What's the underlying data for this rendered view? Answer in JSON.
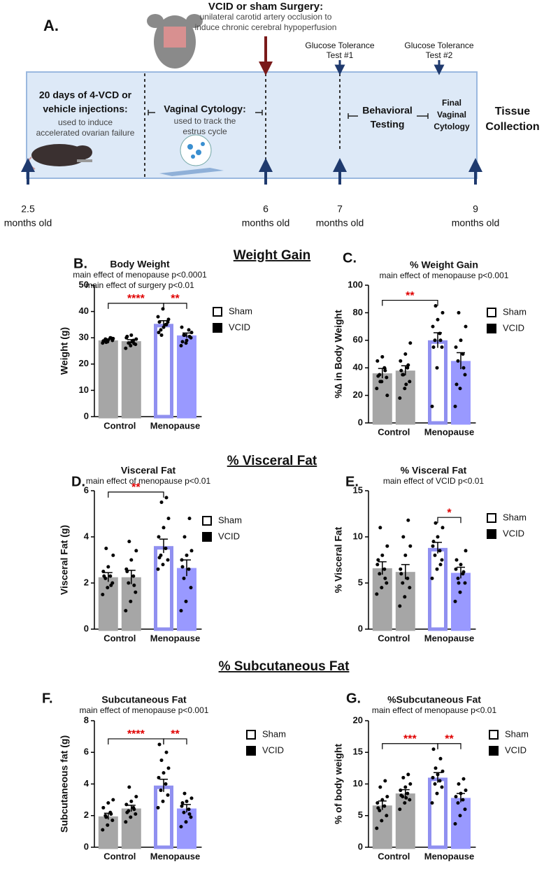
{
  "timeline": {
    "panel": "A.",
    "surgery": {
      "title": "VCID or sham Surgery:",
      "lines": [
        "unilateral carotid artery occlusion to",
        "induce chronic cerebral hypoperfusion"
      ]
    },
    "gtt1": [
      "Glucose Tolerance",
      "Test #1"
    ],
    "gtt2": [
      "Glucose Tolerance",
      "Test #2"
    ],
    "injections": {
      "title": [
        "20 days of 4-VCD or",
        "vehicle injections:"
      ],
      "lines": [
        "used to induce",
        "accelerated ovarian failure"
      ]
    },
    "cytology": {
      "title": "Vaginal Cytology:",
      "lines": [
        "used to track the",
        "estrus cycle"
      ]
    },
    "behavior": [
      "Behavioral",
      "Testing"
    ],
    "final": [
      "Final",
      "Vaginal",
      "Cytology"
    ],
    "tissue": [
      "Tissue",
      "Collection"
    ],
    "ages": [
      {
        "age": "2.5",
        "unit": "months old"
      },
      {
        "age": "6",
        "unit": "months old"
      },
      {
        "age": "7",
        "unit": "months old"
      },
      {
        "age": "9",
        "unit": "months old"
      }
    ]
  },
  "sections": [
    "Weight Gain",
    "% Visceral Fat",
    "% Subcutaneous Fat"
  ],
  "chart_data": [
    {
      "type": "bar",
      "panel": "B.",
      "title": "Body Weight",
      "subtitle": [
        "main effect of menopause p<0.0001",
        "main effect of surgery p<0.01"
      ],
      "ylabel": "Weight (g)",
      "categories": [
        "Control",
        "Menopause"
      ],
      "ylim": [
        0,
        50
      ],
      "yticks": [
        0,
        10,
        20,
        30,
        40,
        50
      ],
      "series": [
        {
          "name": "Sham",
          "colors": [
            "#a6a6a6",
            "#9090f0"
          ],
          "fills": [
            "#a6a6a6",
            "#ffffff"
          ],
          "legend_fill": "#ffffff",
          "values": [
            29,
            35.3
          ],
          "errors": [
            0.4,
            1.2
          ],
          "points": [
            [
              28,
              28.5,
              29,
              29.5,
              30,
              28.8,
              29.2,
              29.7,
              28.3,
              29.9
            ],
            [
              38,
              41,
              36,
              33,
              35,
              32,
              34,
              37,
              31,
              35,
              36
            ]
          ]
        },
        {
          "name": "VCID",
          "colors": [
            "#a6a6a6",
            "#9999ff"
          ],
          "fills": [
            "#a6a6a6",
            "#9999ff"
          ],
          "legend_fill": "#000000",
          "values": [
            28.7,
            30.9
          ],
          "errors": [
            0.6,
            0.9
          ],
          "points": [
            [
              26,
              27,
              27.5,
              28,
              29,
              30,
              31,
              29.5,
              28,
              27.8,
              30.5,
              28.5
            ],
            [
              27,
              28,
              30,
              31,
              33,
              34,
              29,
              32,
              31,
              30.5,
              28.5
            ]
          ]
        }
      ],
      "significance": [
        {
          "label": "****",
          "between": [
            [
              0,
              0
            ],
            [
              1,
              0
            ]
          ]
        },
        {
          "label": "**",
          "between": [
            [
              1,
              0
            ],
            [
              1,
              1
            ]
          ]
        }
      ]
    },
    {
      "type": "bar",
      "panel": "C.",
      "title": "% Weight Gain",
      "subtitle": [
        "main effect of menopause p<0.001"
      ],
      "ylabel": "%∆ in Body Weight",
      "categories": [
        "Control",
        "Menopause"
      ],
      "ylim": [
        0,
        100
      ],
      "yticks": [
        0,
        20,
        40,
        60,
        80,
        100
      ],
      "series": [
        {
          "name": "Sham",
          "colors": [
            "#a6a6a6",
            "#9090f0"
          ],
          "fills": [
            "#a6a6a6",
            "#ffffff"
          ],
          "legend_fill": "#ffffff",
          "values": [
            36,
            60
          ],
          "errors": [
            3.5,
            5.5
          ],
          "points": [
            [
              25,
              30,
              33,
              35,
              40,
              45,
              48,
              20,
              30,
              38,
              34
            ],
            [
              12,
              40,
              55,
              60,
              65,
              70,
              75,
              80,
              85,
              60,
              55
            ]
          ]
        },
        {
          "name": "VCID",
          "colors": [
            "#a6a6a6",
            "#9999ff"
          ],
          "fills": [
            "#a6a6a6",
            "#9999ff"
          ],
          "legend_fill": "#000000",
          "values": [
            38,
            45
          ],
          "errors": [
            3.5,
            6
          ],
          "points": [
            [
              18,
              25,
              30,
              35,
              40,
              45,
              50,
              58,
              35,
              42,
              38,
              28
            ],
            [
              12,
              25,
              35,
              45,
              50,
              55,
              60,
              70,
              80,
              40,
              28
            ]
          ]
        }
      ],
      "significance": [
        {
          "label": "**",
          "between": [
            [
              0,
              0
            ],
            [
              1,
              0
            ]
          ]
        }
      ]
    },
    {
      "type": "bar",
      "panel": "D.",
      "title": "Visceral Fat",
      "subtitle": [
        "main effect of menopause p<0.01"
      ],
      "ylabel": "Visceral Fat (g)",
      "categories": [
        "Control",
        "Menopause"
      ],
      "ylim": [
        0,
        6
      ],
      "yticks": [
        0,
        2,
        4,
        6
      ],
      "series": [
        {
          "name": "Sham",
          "colors": [
            "#a6a6a6",
            "#9090f0"
          ],
          "fills": [
            "#a6a6a6",
            "#ffffff"
          ],
          "legend_fill": "#ffffff",
          "values": [
            2.25,
            3.6
          ],
          "errors": [
            0.2,
            0.3
          ],
          "points": [
            [
              1.5,
              1.8,
              2,
              2.2,
              2.3,
              2.5,
              2.7,
              3.2,
              3.5,
              1.9,
              2.3
            ],
            [
              2.6,
              2.8,
              3,
              3.2,
              3.5,
              4,
              4.4,
              4.8,
              5.5,
              5.7,
              3.1
            ]
          ]
        },
        {
          "name": "VCID",
          "colors": [
            "#a6a6a6",
            "#9999ff"
          ],
          "fills": [
            "#a6a6a6",
            "#9999ff"
          ],
          "legend_fill": "#000000",
          "values": [
            2.25,
            2.65
          ],
          "errors": [
            0.3,
            0.35
          ],
          "points": [
            [
              0.8,
              1.2,
              1.6,
              2,
              2.3,
              2.6,
              3,
              3.4,
              3.8,
              1.9,
              2.5
            ],
            [
              0.8,
              1.2,
              1.8,
              2.2,
              2.6,
              3,
              3.2,
              3.4,
              4,
              4.8,
              2.7
            ]
          ]
        }
      ],
      "significance": [
        {
          "label": "**",
          "between": [
            [
              0,
              0
            ],
            [
              1,
              0
            ]
          ]
        }
      ]
    },
    {
      "type": "bar",
      "panel": "E.",
      "title": "% Visceral Fat",
      "subtitle": [
        "main effect of VCID p<0.01"
      ],
      "ylabel": "% Visceral Fat",
      "categories": [
        "Control",
        "Menopause"
      ],
      "ylim": [
        0,
        15
      ],
      "yticks": [
        0,
        5,
        10,
        15
      ],
      "series": [
        {
          "name": "Sham",
          "colors": [
            "#a6a6a6",
            "#9090f0"
          ],
          "fills": [
            "#a6a6a6",
            "#ffffff"
          ],
          "legend_fill": "#ffffff",
          "values": [
            6.6,
            8.8
          ],
          "errors": [
            0.7,
            0.6
          ],
          "points": [
            [
              3.8,
              4.5,
              5,
              6,
              6.5,
              7,
              8,
              9,
              11,
              5.5,
              7.5
            ],
            [
              5.5,
              6.5,
              7.5,
              8,
              8.5,
              9,
              10,
              11,
              11.5,
              7,
              9.5
            ]
          ]
        },
        {
          "name": "VCID",
          "colors": [
            "#a6a6a6",
            "#9999ff"
          ],
          "fills": [
            "#a6a6a6",
            "#9999ff"
          ],
          "legend_fill": "#000000",
          "values": [
            6.2,
            6.1
          ],
          "errors": [
            0.8,
            0.6
          ],
          "points": [
            [
              2.5,
              3.5,
              4.5,
              5,
              5.5,
              6.5,
              8,
              9,
              10,
              11.8,
              6
            ],
            [
              3,
              4,
              5,
              5.5,
              6,
              6.5,
              7,
              8.5,
              5,
              6.2,
              7.5
            ]
          ]
        }
      ],
      "significance": [
        {
          "label": "*",
          "between": [
            [
              1,
              0
            ],
            [
              1,
              1
            ]
          ]
        }
      ]
    },
    {
      "type": "bar",
      "panel": "F.",
      "title": "Subcutaneous Fat",
      "subtitle": [
        "main effect of menopause p<0.001"
      ],
      "ylabel": "Subcutaneous fat (g)",
      "categories": [
        "Control",
        "Menopause"
      ],
      "ylim": [
        0,
        8
      ],
      "yticks": [
        0,
        2,
        4,
        6,
        8
      ],
      "series": [
        {
          "name": "Sham",
          "colors": [
            "#a6a6a6",
            "#9090f0"
          ],
          "fills": [
            "#a6a6a6",
            "#ffffff"
          ],
          "legend_fill": "#ffffff",
          "values": [
            1.95,
            3.9
          ],
          "errors": [
            0.2,
            0.4
          ],
          "points": [
            [
              1.1,
              1.4,
              1.7,
              2,
              2.2,
              2.5,
              2.8,
              3,
              1.9,
              2.1
            ],
            [
              2.5,
              2.9,
              3.3,
              3.6,
              4,
              4.4,
              4.7,
              5,
              5.5,
              6,
              6.5
            ]
          ]
        },
        {
          "name": "VCID",
          "colors": [
            "#a6a6a6",
            "#9999ff"
          ],
          "fills": [
            "#a6a6a6",
            "#9999ff"
          ],
          "legend_fill": "#000000",
          "values": [
            2.45,
            2.45
          ],
          "errors": [
            0.2,
            0.25
          ],
          "points": [
            [
              1.6,
              1.9,
              2.1,
              2.3,
              2.5,
              2.7,
              2.9,
              3.2,
              3.8,
              2.4,
              2.2
            ],
            [
              1.3,
              1.6,
              1.9,
              2.2,
              2.4,
              2.6,
              2.9,
              3.1,
              3.4,
              2.1,
              2.8
            ]
          ]
        }
      ],
      "significance": [
        {
          "label": "****",
          "between": [
            [
              0,
              0
            ],
            [
              1,
              0
            ]
          ]
        },
        {
          "label": "**",
          "between": [
            [
              1,
              0
            ],
            [
              1,
              1
            ]
          ]
        }
      ]
    },
    {
      "type": "bar",
      "panel": "G.",
      "title": "%Subcutaneous Fat",
      "subtitle": [
        "main effect of menopause p<0.01"
      ],
      "ylabel": "% of body weight",
      "categories": [
        "Control",
        "Menopause"
      ],
      "ylim": [
        0,
        20
      ],
      "yticks": [
        0,
        5,
        10,
        15,
        20
      ],
      "series": [
        {
          "name": "Sham",
          "colors": [
            "#a6a6a6",
            "#9090f0"
          ],
          "fills": [
            "#a6a6a6",
            "#ffffff"
          ],
          "legend_fill": "#ffffff",
          "values": [
            6.6,
            11
          ],
          "errors": [
            0.7,
            0.8
          ],
          "points": [
            [
              3,
              4.2,
              5,
              5.8,
              6.5,
              7,
              7.5,
              8,
              9.5,
              10.5,
              6.2
            ],
            [
              7,
              8.5,
              9.5,
              10,
              10.5,
              11,
              11.5,
              12,
              12.5,
              14,
              15.5
            ]
          ]
        },
        {
          "name": "VCID",
          "colors": [
            "#a6a6a6",
            "#9999ff"
          ],
          "fills": [
            "#a6a6a6",
            "#9999ff"
          ],
          "legend_fill": "#000000",
          "values": [
            8.5,
            7.8
          ],
          "errors": [
            0.6,
            0.7
          ],
          "points": [
            [
              6,
              7,
              7.5,
              8,
              8.5,
              9,
              9.5,
              10,
              11,
              11.5,
              8.2,
              7.8
            ],
            [
              3.7,
              5,
              6,
              7,
              7.5,
              8,
              8.5,
              9,
              10,
              10.8
            ]
          ]
        }
      ],
      "significance": [
        {
          "label": "***",
          "between": [
            [
              0,
              0
            ],
            [
              1,
              0
            ]
          ]
        },
        {
          "label": "**",
          "between": [
            [
              1,
              0
            ],
            [
              1,
              1
            ]
          ]
        }
      ]
    }
  ]
}
